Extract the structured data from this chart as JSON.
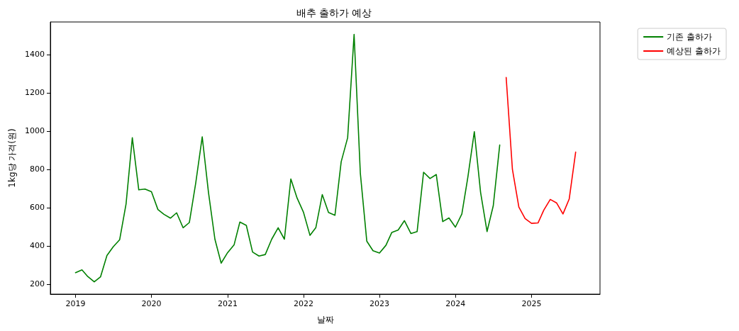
{
  "chart_data": {
    "type": "line",
    "title": "배추 출하가 예상",
    "xlabel": "날짜",
    "ylabel": "1kg당 가격(원)",
    "series": [
      {
        "name": "기존 출하가",
        "color": "#008000",
        "x": [
          "2019-01",
          "2019-02",
          "2019-03",
          "2019-04",
          "2019-05",
          "2019-06",
          "2019-07",
          "2019-08",
          "2019-09",
          "2019-10",
          "2019-11",
          "2019-12",
          "2020-01",
          "2020-02",
          "2020-03",
          "2020-04",
          "2020-05",
          "2020-06",
          "2020-07",
          "2020-08",
          "2020-09",
          "2020-10",
          "2020-11",
          "2020-12",
          "2021-01",
          "2021-02",
          "2021-03",
          "2021-04",
          "2021-05",
          "2021-06",
          "2021-07",
          "2021-08",
          "2021-09",
          "2021-10",
          "2021-11",
          "2021-12",
          "2022-01",
          "2022-02",
          "2022-03",
          "2022-04",
          "2022-05",
          "2022-06",
          "2022-07",
          "2022-08",
          "2022-09",
          "2022-10",
          "2022-11",
          "2022-12",
          "2023-01",
          "2023-02",
          "2023-03",
          "2023-04",
          "2023-05",
          "2023-06",
          "2023-07",
          "2023-08",
          "2023-09",
          "2023-10",
          "2023-11",
          "2023-12",
          "2024-01",
          "2024-02",
          "2024-03",
          "2024-04",
          "2024-05",
          "2024-06",
          "2024-07",
          "2024-08"
        ],
        "values": [
          260,
          275,
          240,
          212,
          238,
          350,
          395,
          432,
          620,
          965,
          693,
          697,
          683,
          590,
          565,
          545,
          573,
          495,
          522,
          730,
          970,
          680,
          435,
          310,
          365,
          405,
          525,
          507,
          368,
          347,
          355,
          435,
          495,
          435,
          750,
          650,
          575,
          455,
          495,
          668,
          575,
          560,
          840,
          965,
          1505,
          780,
          425,
          375,
          363,
          403,
          470,
          483,
          532,
          465,
          475,
          785,
          752,
          773,
          527,
          546,
          498,
          567,
          760,
          997,
          680,
          475,
          610,
          927
        ]
      },
      {
        "name": "예상된 출하가",
        "color": "#ff0000",
        "x": [
          "2024-09",
          "2024-10",
          "2024-11",
          "2024-12",
          "2025-01",
          "2025-02",
          "2025-03",
          "2025-04",
          "2025-05",
          "2025-06",
          "2025-07",
          "2025-08"
        ],
        "values": [
          1280,
          800,
          603,
          543,
          518,
          520,
          587,
          643,
          625,
          567,
          645,
          890
        ]
      }
    ],
    "xlim": [
      "2018-09-02",
      "2025-11-26"
    ],
    "xticks": [
      {
        "value": "2019-01",
        "label": "2019"
      },
      {
        "value": "2020-01",
        "label": "2020"
      },
      {
        "value": "2021-01",
        "label": "2021"
      },
      {
        "value": "2022-01",
        "label": "2022"
      },
      {
        "value": "2023-01",
        "label": "2023"
      },
      {
        "value": "2024-01",
        "label": "2024"
      },
      {
        "value": "2025-01",
        "label": "2025"
      }
    ],
    "ylim": [
      148,
      1570
    ],
    "yticks": [
      200,
      400,
      600,
      800,
      1000,
      1200,
      1400
    ],
    "legend": "top right",
    "grid": false,
    "marker": "none",
    "line_style": "solid"
  }
}
